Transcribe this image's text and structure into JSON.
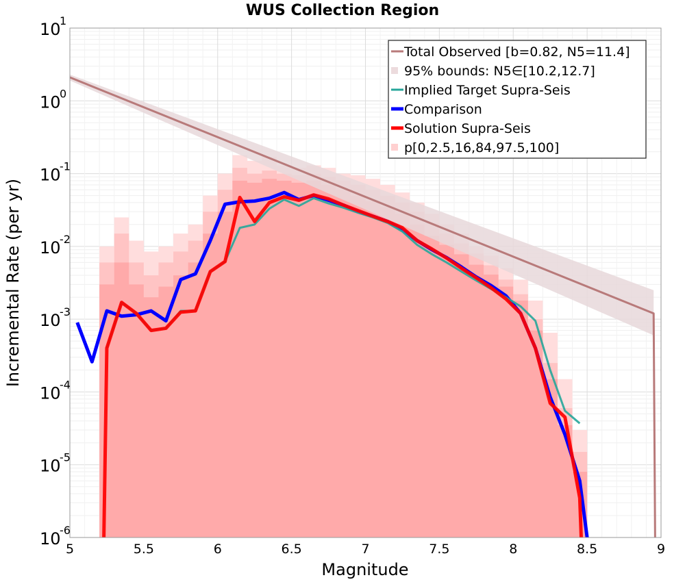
{
  "chart_data": {
    "type": "line",
    "title": "WUS Collection Region",
    "xlabel": "Magnitude",
    "ylabel": "Incremental Rate (per yr)",
    "xlim": [
      5,
      9
    ],
    "ylim_log10": [
      -6,
      1
    ],
    "yscale": "log",
    "grid": true,
    "legend_position": "top-right",
    "x_ticks": [
      "5",
      "5.5",
      "6",
      "6.5",
      "7",
      "7.5",
      "8",
      "8.5",
      "9"
    ],
    "y_ticks": [
      {
        "base": "10",
        "exp": "1"
      },
      {
        "base": "10",
        "exp": "0"
      },
      {
        "base": "10",
        "exp": "-1"
      },
      {
        "base": "10",
        "exp": "-2"
      },
      {
        "base": "10",
        "exp": "-3"
      },
      {
        "base": "10",
        "exp": "-4"
      },
      {
        "base": "10",
        "exp": "-5"
      },
      {
        "base": "10",
        "exp": "-6"
      }
    ],
    "colors": {
      "total_observed": "#b87a7a",
      "bounds_fill": "#e8d8da",
      "implied_target": "#26a69a",
      "comparison": "#0000ff",
      "solution": "#ff0000",
      "band_outer": "#ffdddd",
      "band_mid": "#ffc4c4",
      "band_inner": "#ffaaaa"
    },
    "legend": [
      {
        "label": "Total Observed [b=0.82, N5=11.4]",
        "kind": "line",
        "color": "#b87a7a",
        "width": 3
      },
      {
        "label": "95% bounds: N5∈[10.2,12.7]",
        "kind": "patch",
        "color": "#ecdbdd"
      },
      {
        "label": "Implied Target Supra-Seis",
        "kind": "line",
        "color": "#26a69a",
        "width": 3
      },
      {
        "label": "Comparison",
        "kind": "line",
        "color": "#0000ff",
        "width": 5
      },
      {
        "label": "Solution Supra-Seis",
        "kind": "line",
        "color": "#ff0000",
        "width": 5
      },
      {
        "label": "p[0,2.5,16,84,97.5,100]",
        "kind": "patch",
        "color": "#ffd0d0"
      }
    ],
    "series": [
      {
        "name": "Total Observed [b=0.82, N5=11.4]",
        "x": [
          5.0,
          8.95,
          8.96
        ],
        "y": [
          2.1,
          0.0012,
          1e-06
        ]
      },
      {
        "name": "95% bounds: N5∈[10.2,12.7]",
        "x": [
          5.0,
          8.95
        ],
        "y_low": [
          1.9,
          0.0006
        ],
        "y_high": [
          2.3,
          0.0025
        ]
      },
      {
        "name": "Implied Target Supra-Seis",
        "x": [
          5.25,
          5.35,
          5.45,
          5.55,
          5.65,
          5.75,
          5.85,
          5.95,
          6.05,
          6.15,
          6.25,
          6.35,
          6.45,
          6.55,
          6.65,
          6.75,
          6.85,
          6.95,
          7.05,
          7.15,
          7.25,
          7.35,
          7.45,
          7.55,
          7.65,
          7.75,
          7.85,
          7.95,
          8.05,
          8.15,
          8.25,
          8.35,
          8.45
        ],
        "y": [
          0.0004,
          0.0017,
          0.0012,
          0.0007,
          0.00075,
          0.0013,
          0.0013,
          0.0045,
          0.0062,
          0.018,
          0.02,
          0.033,
          0.044,
          0.036,
          0.046,
          0.039,
          0.034,
          0.029,
          0.025,
          0.021,
          0.016,
          0.0105,
          0.0078,
          0.006,
          0.0045,
          0.0034,
          0.0026,
          0.002,
          0.0015,
          0.00095,
          0.0002,
          5.5e-05,
          3.7e-05
        ]
      },
      {
        "name": "Comparison",
        "x": [
          5.05,
          5.15,
          5.25,
          5.35,
          5.45,
          5.55,
          5.65,
          5.75,
          5.85,
          5.95,
          6.05,
          6.15,
          6.25,
          6.35,
          6.45,
          6.55,
          6.65,
          6.75,
          6.85,
          6.95,
          7.05,
          7.15,
          7.25,
          7.35,
          7.45,
          7.55,
          7.65,
          7.75,
          7.85,
          7.95,
          8.05,
          8.15,
          8.25,
          8.35,
          8.45,
          8.5
        ],
        "y": [
          0.0009,
          0.00026,
          0.0013,
          0.0011,
          0.00115,
          0.0013,
          0.00095,
          0.0035,
          0.0042,
          0.012,
          0.038,
          0.041,
          0.042,
          0.046,
          0.055,
          0.044,
          0.05,
          0.043,
          0.037,
          0.03,
          0.026,
          0.022,
          0.017,
          0.012,
          0.009,
          0.007,
          0.0052,
          0.0038,
          0.0029,
          0.0021,
          0.0012,
          0.0004,
          8.5e-05,
          2.6e-05,
          6e-06,
          1e-06
        ]
      },
      {
        "name": "Solution Supra-Seis",
        "x": [
          5.23,
          5.25,
          5.35,
          5.45,
          5.55,
          5.65,
          5.75,
          5.85,
          5.95,
          6.05,
          6.15,
          6.25,
          6.35,
          6.45,
          6.55,
          6.65,
          6.75,
          6.85,
          6.95,
          7.05,
          7.15,
          7.25,
          7.35,
          7.45,
          7.55,
          7.65,
          7.75,
          7.85,
          7.95,
          8.05,
          8.15,
          8.25,
          8.35,
          8.45,
          8.46
        ],
        "y": [
          1e-06,
          0.0004,
          0.0017,
          0.0012,
          0.0007,
          0.00075,
          0.00125,
          0.0013,
          0.0045,
          0.0062,
          0.047,
          0.022,
          0.04,
          0.048,
          0.043,
          0.051,
          0.045,
          0.037,
          0.031,
          0.026,
          0.022,
          0.018,
          0.012,
          0.0092,
          0.0069,
          0.005,
          0.0037,
          0.0027,
          0.0019,
          0.0012,
          0.0004,
          7e-05,
          4.5e-05,
          3.5e-06,
          1e-06
        ]
      }
    ],
    "percentile_bands": {
      "x": [
        5.25,
        5.35,
        5.45,
        5.55,
        5.65,
        5.75,
        5.85,
        5.95,
        6.05,
        6.15,
        6.25,
        6.35,
        6.45,
        6.55,
        6.65,
        6.75,
        6.85,
        6.95,
        7.05,
        7.15,
        7.25,
        7.35,
        7.45,
        7.55,
        7.65,
        7.75,
        7.85,
        7.95,
        8.05,
        8.15,
        8.25,
        8.35,
        8.45
      ],
      "p0": [
        1e-06,
        1e-06,
        1e-06,
        1e-06,
        1e-06,
        1e-06,
        1e-06,
        1e-06,
        1e-06,
        1e-06,
        1e-06,
        1e-06,
        1e-06,
        1e-06,
        1e-06,
        1e-06,
        1e-06,
        1e-06,
        1e-06,
        1e-06,
        1e-06,
        1e-06,
        1e-06,
        1e-06,
        1e-06,
        1e-06,
        1e-06,
        1e-06,
        1e-06,
        1e-06,
        1e-06,
        1e-06,
        1e-06
      ],
      "p100": [
        0.01,
        0.025,
        0.012,
        0.0085,
        0.01,
        0.015,
        0.02,
        0.05,
        0.1,
        0.18,
        0.15,
        0.17,
        0.13,
        0.12,
        0.13,
        0.12,
        0.1,
        0.095,
        0.085,
        0.07,
        0.055,
        0.04,
        0.028,
        0.02,
        0.015,
        0.01,
        0.0075,
        0.005,
        0.0035,
        0.0018,
        0.00065,
        0.00015,
        3e-05
      ],
      "p2_5": [
        1e-06,
        1e-06,
        1e-06,
        1e-06,
        1e-06,
        1e-06,
        1e-06,
        1e-06,
        1e-06,
        1e-06,
        1e-06,
        1e-06,
        1e-06,
        1e-06,
        1e-06,
        1e-06,
        1e-06,
        1e-06,
        1e-06,
        1e-06,
        1e-06,
        1e-06,
        1e-06,
        1e-06,
        1e-06,
        1e-06,
        1e-06,
        1e-06,
        1e-06,
        1e-06,
        1e-06,
        1e-06,
        1e-06
      ],
      "p97_5": [
        0.006,
        0.015,
        0.006,
        0.004,
        0.006,
        0.0085,
        0.012,
        0.03,
        0.06,
        0.12,
        0.1,
        0.11,
        0.1,
        0.095,
        0.1,
        0.09,
        0.08,
        0.07,
        0.06,
        0.05,
        0.04,
        0.03,
        0.021,
        0.015,
        0.011,
        0.008,
        0.0055,
        0.0035,
        0.0022,
        0.001,
        0.00025,
        6e-05,
        1.5e-05
      ],
      "p16": [
        1e-06,
        1e-06,
        1e-06,
        1e-06,
        1e-06,
        1e-06,
        1e-06,
        1e-06,
        1e-06,
        1e-06,
        1e-06,
        1e-06,
        1e-06,
        1e-06,
        1e-06,
        1e-06,
        1e-06,
        1e-06,
        1e-06,
        1e-06,
        1e-06,
        1e-06,
        1e-06,
        1e-06,
        1e-06,
        1e-06,
        1e-06,
        1e-06,
        1e-06,
        1e-06,
        1e-06,
        1e-06,
        1e-06
      ],
      "p84": [
        0.003,
        0.006,
        0.003,
        0.002,
        0.0028,
        0.004,
        0.006,
        0.015,
        0.03,
        0.08,
        0.075,
        0.085,
        0.08,
        0.075,
        0.08,
        0.07,
        0.06,
        0.05,
        0.042,
        0.035,
        0.028,
        0.02,
        0.014,
        0.0105,
        0.0078,
        0.0056,
        0.0041,
        0.0028,
        0.0018,
        0.0007,
        0.00015,
        3.5e-05,
        8e-06
      ]
    }
  }
}
